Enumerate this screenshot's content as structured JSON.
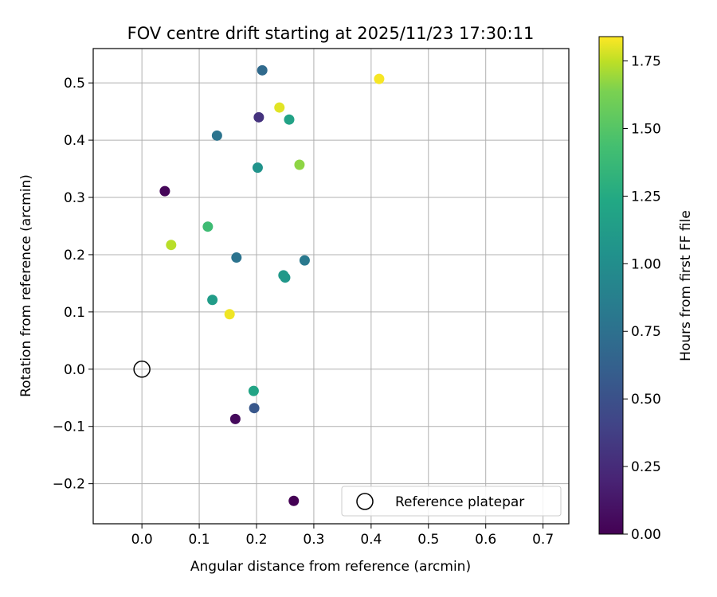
{
  "chart_data": {
    "type": "scatter",
    "title": "FOV centre drift starting at 2025/11/23 17:30:11",
    "xlabel": "Angular distance from reference (arcmin)",
    "ylabel": "Rotation from reference (arcmin)",
    "xlim": [
      -0.085,
      0.745
    ],
    "ylim": [
      -0.27,
      0.56
    ],
    "xticks": [
      0.0,
      0.1,
      0.2,
      0.3,
      0.4,
      0.5,
      0.6,
      0.7
    ],
    "xtick_labels": [
      "0.0",
      "0.1",
      "0.2",
      "0.3",
      "0.4",
      "0.5",
      "0.6",
      "0.7"
    ],
    "yticks": [
      -0.2,
      -0.1,
      0.0,
      0.1,
      0.2,
      0.3,
      0.4,
      0.5
    ],
    "ytick_labels": [
      "−0.2",
      "−0.1",
      "0.0",
      "0.1",
      "0.2",
      "0.3",
      "0.4",
      "0.5"
    ],
    "grid": true,
    "colorbar": {
      "label": "Hours from first FF file",
      "min": 0.0,
      "max": 1.84,
      "colormap": "viridis",
      "ticks": [
        0.0,
        0.25,
        0.5,
        0.75,
        1.0,
        1.25,
        1.5,
        1.75
      ],
      "tick_labels": [
        "0.00",
        "0.25",
        "0.50",
        "0.75",
        "1.00",
        "1.25",
        "1.50",
        "1.75"
      ]
    },
    "points": [
      {
        "x": 0.265,
        "y": -0.23,
        "hours": 0.0
      },
      {
        "x": 0.04,
        "y": 0.311,
        "hours": 0.03
      },
      {
        "x": 0.163,
        "y": -0.087,
        "hours": 0.05
      },
      {
        "x": 0.204,
        "y": 0.44,
        "hours": 0.3
      },
      {
        "x": 0.196,
        "y": -0.068,
        "hours": 0.55
      },
      {
        "x": 0.21,
        "y": 0.522,
        "hours": 0.7
      },
      {
        "x": 0.131,
        "y": 0.408,
        "hours": 0.78
      },
      {
        "x": 0.165,
        "y": 0.195,
        "hours": 0.77
      },
      {
        "x": 0.284,
        "y": 0.19,
        "hours": 0.82
      },
      {
        "x": 0.202,
        "y": 0.352,
        "hours": 1.05
      },
      {
        "x": 0.25,
        "y": 0.16,
        "hours": 1.08
      },
      {
        "x": 0.247,
        "y": 0.164,
        "hours": 1.1
      },
      {
        "x": 0.123,
        "y": 0.121,
        "hours": 1.13
      },
      {
        "x": 0.257,
        "y": 0.436,
        "hours": 1.18
      },
      {
        "x": 0.195,
        "y": -0.038,
        "hours": 1.2
      },
      {
        "x": 0.115,
        "y": 0.249,
        "hours": 1.4
      },
      {
        "x": 0.275,
        "y": 0.357,
        "hours": 1.67
      },
      {
        "x": 0.051,
        "y": 0.217,
        "hours": 1.74
      },
      {
        "x": 0.24,
        "y": 0.457,
        "hours": 1.8
      },
      {
        "x": 0.153,
        "y": 0.096,
        "hours": 1.82
      },
      {
        "x": 0.414,
        "y": 0.507,
        "hours": 1.83
      }
    ],
    "reference": {
      "x": 0.0,
      "y": 0.0,
      "label": "Reference platepar"
    },
    "legend_position": "bottom-right"
  }
}
